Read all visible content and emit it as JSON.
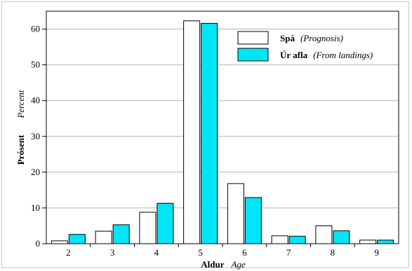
{
  "chart_data": {
    "type": "bar",
    "categories": [
      "2",
      "3",
      "4",
      "5",
      "6",
      "7",
      "8",
      "9"
    ],
    "series": [
      {
        "name": "Spá",
        "name_en": "(Prognosis)",
        "color": "#ffffff",
        "values": [
          0.8,
          3.5,
          8.8,
          62.3,
          16.8,
          2.2,
          5.0,
          1.0
        ]
      },
      {
        "name": "Úr afla",
        "name_en": "(From landings)",
        "color": "#00e5f5",
        "values": [
          2.6,
          5.3,
          11.3,
          61.6,
          12.9,
          2.1,
          3.6,
          1.0
        ]
      }
    ],
    "xlabel": "Aldur",
    "xlabel_en": "Age",
    "ylabel": "Prósent",
    "ylabel_en": "Percent",
    "ylim": [
      0,
      65
    ],
    "yticks": [
      0,
      10,
      20,
      30,
      40,
      50,
      60
    ],
    "grid": true,
    "legend_position": "top-right"
  }
}
